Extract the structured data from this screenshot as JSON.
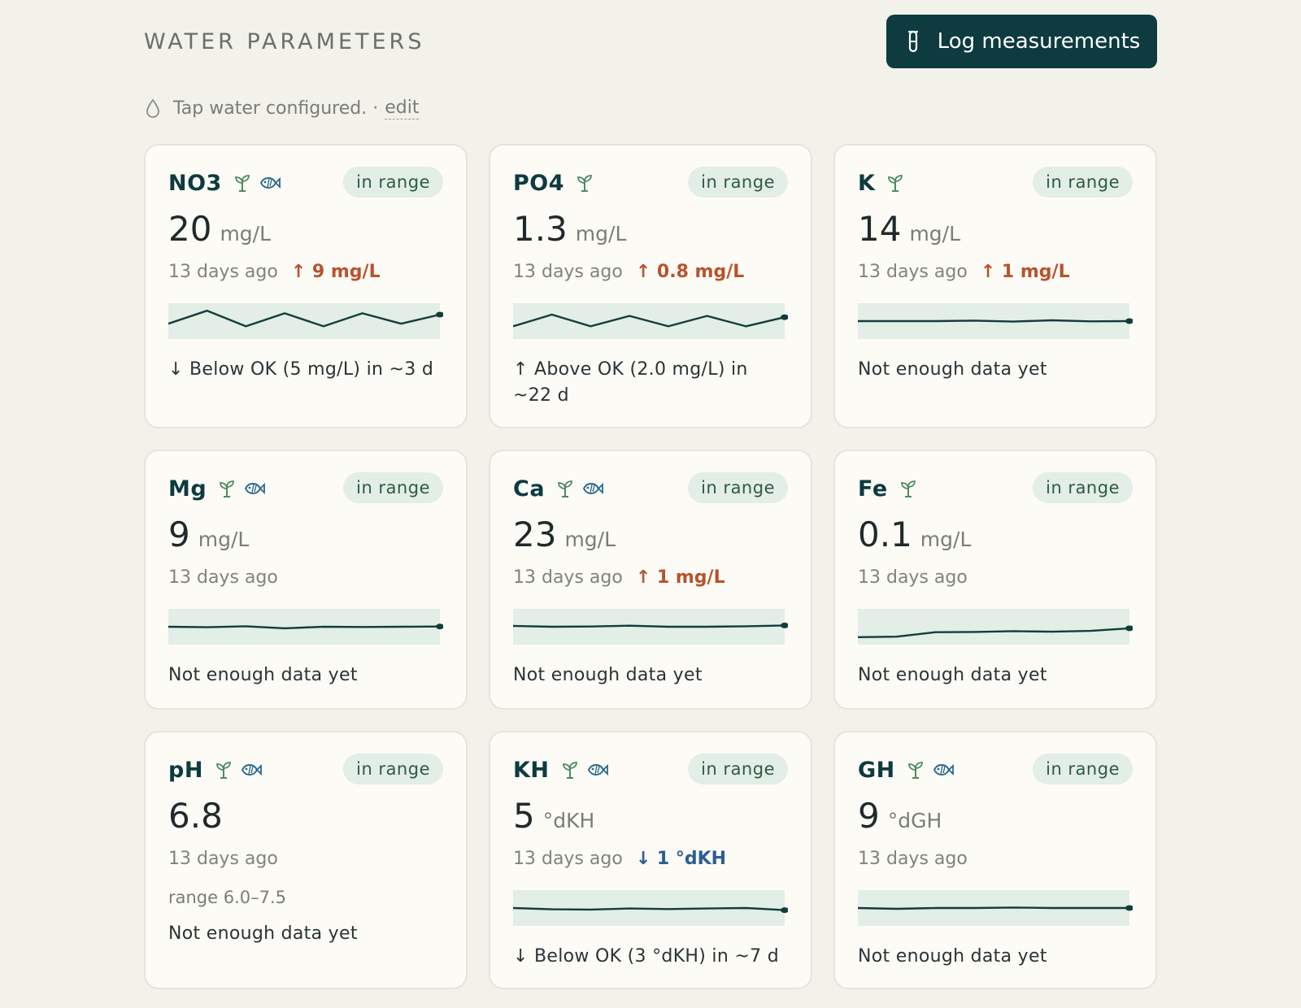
{
  "header": {
    "title": "WATER PARAMETERS",
    "log_button_label": "Log measurements"
  },
  "tap_water": {
    "status": "Tap water configured. ·",
    "edit_label": "edit"
  },
  "colors": {
    "accent": "#0d3b3f",
    "badge_bg": "#e2eee6",
    "delta_up": "#b8532c",
    "delta_down": "#2c5e96",
    "spark_band": "#e2eee6"
  },
  "cards": [
    {
      "name": "NO3",
      "icons": [
        "plant-icon",
        "fish-icon"
      ],
      "badge": "in range",
      "value": "20",
      "unit": "mg/L",
      "ago": "13 days ago",
      "delta": "↑ 9 mg/L",
      "delta_dir": "up",
      "spark": [
        6,
        1,
        7,
        2,
        7,
        2,
        6,
        2.5
      ],
      "forecast": "↓ Below OK (5 mg/L) in ~3 d"
    },
    {
      "name": "PO4",
      "icons": [
        "plant-icon"
      ],
      "badge": "in range",
      "value": "1.3",
      "unit": "mg/L",
      "ago": "13 days ago",
      "delta": "↑ 0.8 mg/L",
      "delta_dir": "up",
      "spark": [
        7,
        2.5,
        7,
        3,
        7,
        3,
        7,
        3.5
      ],
      "forecast": "↑ Above OK (2.0 mg/L) in ~22 d"
    },
    {
      "name": "K",
      "icons": [
        "plant-icon"
      ],
      "badge": "in range",
      "value": "14",
      "unit": "mg/L",
      "ago": "13 days ago",
      "delta": "↑ 1 mg/L",
      "delta_dir": "up",
      "spark": [
        5,
        5,
        5,
        4.8,
        5.2,
        4.7,
        5.1,
        5
      ],
      "forecast": "Not enough data yet"
    },
    {
      "name": "Mg",
      "icons": [
        "plant-icon",
        "fish-icon"
      ],
      "badge": "in range",
      "value": "9",
      "unit": "mg/L",
      "ago": "13 days ago",
      "delta": "",
      "delta_dir": "",
      "spark": [
        5,
        5.2,
        4.8,
        5.6,
        5,
        5.1,
        5,
        4.9
      ],
      "forecast": "Not enough data yet"
    },
    {
      "name": "Ca",
      "icons": [
        "plant-icon",
        "fish-icon"
      ],
      "badge": "in range",
      "value": "23",
      "unit": "mg/L",
      "ago": "13 days ago",
      "delta": "↑ 1 mg/L",
      "delta_dir": "up",
      "spark": [
        4.7,
        5,
        4.9,
        4.6,
        5,
        5,
        4.8,
        4.5
      ],
      "forecast": "Not enough data yet"
    },
    {
      "name": "Fe",
      "icons": [
        "plant-icon"
      ],
      "badge": "in range",
      "value": "0.1",
      "unit": "mg/L",
      "ago": "13 days ago",
      "delta": "",
      "delta_dir": "",
      "spark": [
        9,
        8.8,
        7.1,
        7,
        6.7,
        6.9,
        6.6,
        5.6
      ],
      "forecast": "Not enough data yet"
    },
    {
      "name": "pH",
      "icons": [
        "plant-icon",
        "fish-icon"
      ],
      "badge": "in range",
      "value": "6.8",
      "unit": "",
      "ago": "13 days ago",
      "delta": "",
      "delta_dir": "",
      "range": "range 6.0–7.5",
      "spark": [],
      "forecast": "Not enough data yet"
    },
    {
      "name": "KH",
      "icons": [
        "plant-icon",
        "fish-icon"
      ],
      "badge": "in range",
      "value": "5",
      "unit": "°dKH",
      "ago": "13 days ago",
      "delta": "↓ 1 °dKH",
      "delta_dir": "down",
      "spark": [
        5,
        5.5,
        5.6,
        5.2,
        5.4,
        5.2,
        5,
        5.8
      ],
      "forecast": "↓ Below OK (3 °dKH) in ~7 d"
    },
    {
      "name": "GH",
      "icons": [
        "plant-icon",
        "fish-icon"
      ],
      "badge": "in range",
      "value": "9",
      "unit": "°dGH",
      "ago": "13 days ago",
      "delta": "",
      "delta_dir": "",
      "spark": [
        5,
        5.3,
        5,
        5,
        4.8,
        5,
        5,
        5
      ],
      "forecast": "Not enough data yet"
    }
  ]
}
